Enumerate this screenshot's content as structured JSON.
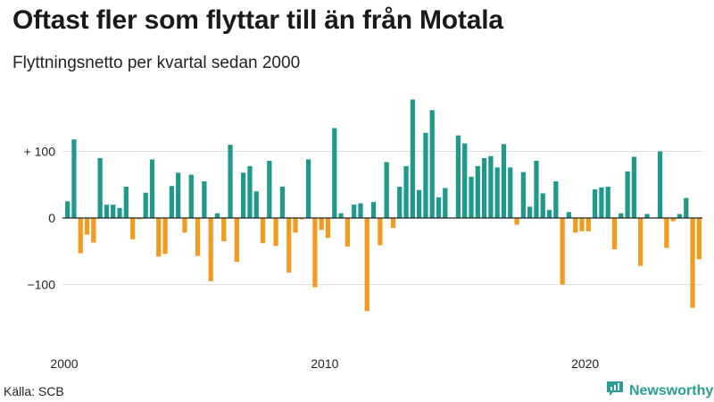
{
  "title": "Oftast fler som flyttar till än från Motala",
  "subtitle": "Flyttningsnetto per kvartal sedan 2000",
  "source": "Källa: SCB",
  "brand": "Newsworthy",
  "colors": {
    "positive": "#1f9a8a",
    "negative": "#f29c1f",
    "grid": "#dddddd",
    "zero": "#222222",
    "brand": "#2a9d93"
  },
  "chart_data": {
    "type": "bar",
    "x_start": "2000 Q1",
    "x_interval": "quarter",
    "y_ticks": [
      {
        "value": 100,
        "label": "+ 100"
      },
      {
        "value": 0,
        "label": "0"
      },
      {
        "value": -100,
        "label": "−100"
      }
    ],
    "x_ticks": [
      {
        "index": 0,
        "label": "2000"
      },
      {
        "index": 40,
        "label": "2010"
      },
      {
        "index": 80,
        "label": "2020"
      }
    ],
    "ylim": [
      -165,
      185
    ],
    "grid": true,
    "values": [
      25,
      118,
      -53,
      -25,
      -37,
      90,
      20,
      20,
      15,
      47,
      -32,
      -2,
      38,
      88,
      -58,
      -54,
      48,
      68,
      -22,
      65,
      -57,
      55,
      -95,
      7,
      -35,
      110,
      -66,
      68,
      78,
      40,
      -38,
      86,
      -42,
      47,
      -82,
      -22,
      -2,
      88,
      -104,
      -18,
      -30,
      135,
      7,
      -43,
      20,
      22,
      -140,
      24,
      -41,
      84,
      -15,
      47,
      78,
      178,
      42,
      128,
      162,
      31,
      45,
      0,
      124,
      112,
      62,
      78,
      90,
      93,
      76,
      111,
      76,
      -10,
      69,
      17,
      86,
      37,
      12,
      55,
      -100,
      9,
      -22,
      -20,
      -20,
      43,
      46,
      47,
      -47,
      7,
      70,
      92,
      -72,
      6,
      0,
      100,
      -45,
      -5,
      6,
      30,
      -135,
      -62
    ]
  }
}
